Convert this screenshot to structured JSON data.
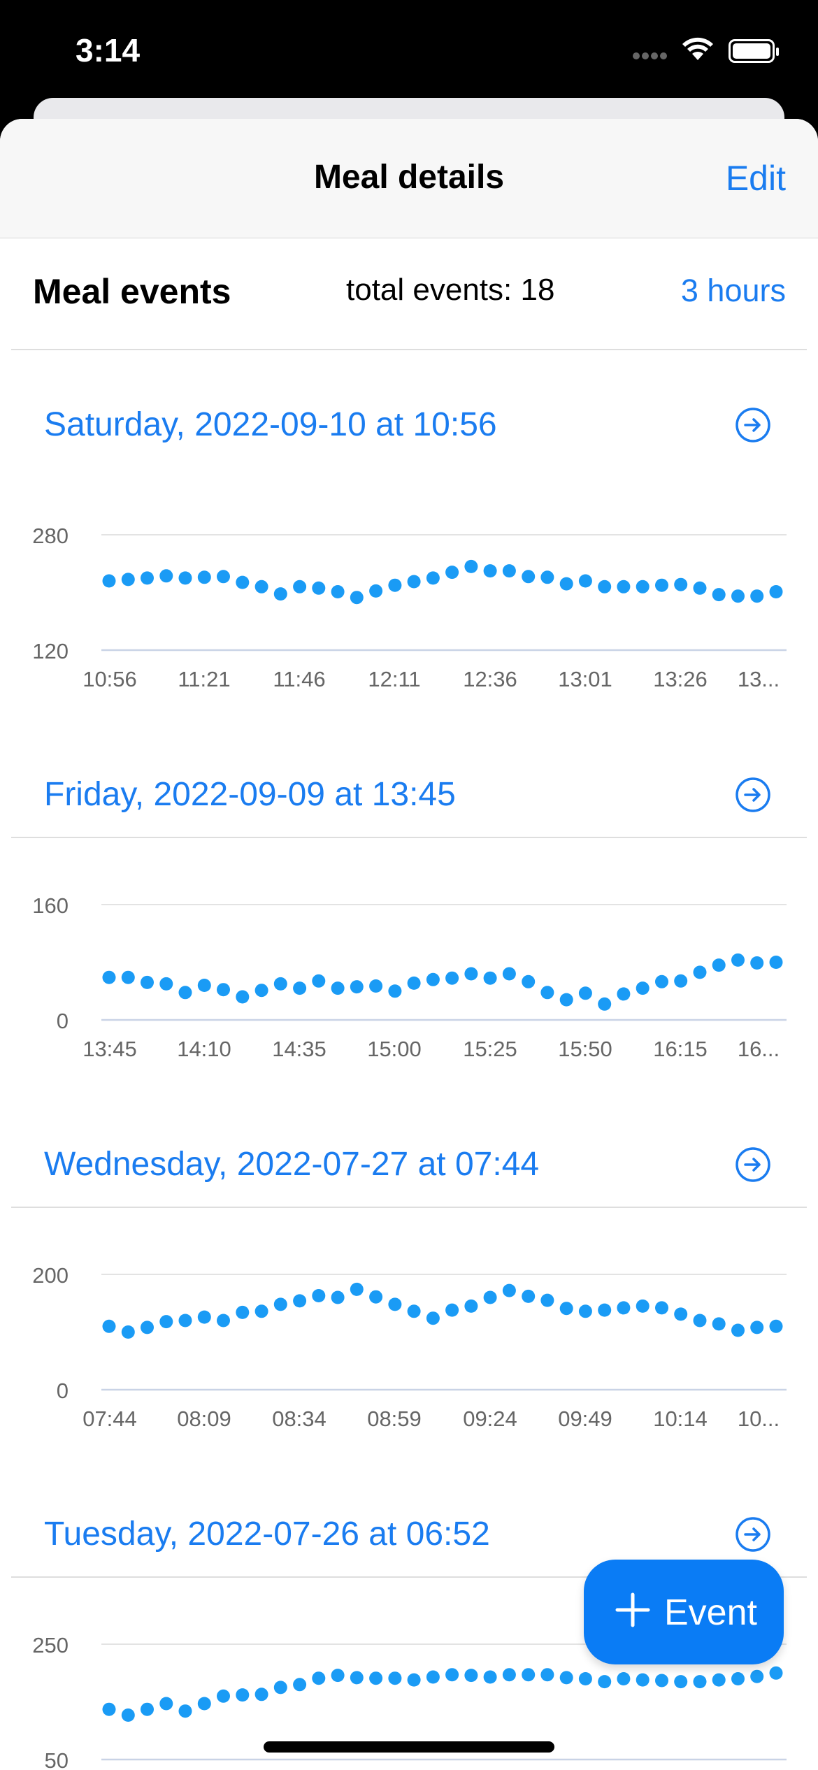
{
  "status_bar": {
    "time": "3:14"
  },
  "nav": {
    "title": "Meal details",
    "edit_label": "Edit"
  },
  "section": {
    "title": "Meal events",
    "total": "total events: 18",
    "range": "3 hours"
  },
  "fab": {
    "label": "Event"
  },
  "colors": {
    "accent": "#1a7cf0",
    "dots": "#1a9bf5",
    "grid": "#e3e3e3",
    "baseline": "#c9d3e6"
  },
  "events": [
    {
      "title": "Saturday, 2022-09-10 at 10:56",
      "chart_data": {
        "type": "scatter",
        "y_ticks": [
          "280",
          "120"
        ],
        "ylim": [
          120,
          280
        ],
        "x_ticks": [
          "10:56",
          "11:21",
          "11:46",
          "12:11",
          "12:36",
          "13:01",
          "13:26",
          "13..."
        ],
        "values": [
          216,
          218,
          220,
          223,
          220,
          221,
          222,
          214,
          208,
          198,
          208,
          206,
          201,
          193,
          202,
          210,
          215,
          220,
          228,
          236,
          230,
          230,
          222,
          221,
          212,
          216,
          208,
          208,
          208,
          210,
          211,
          206,
          197,
          195,
          195,
          201
        ]
      }
    },
    {
      "title": "Friday, 2022-09-09 at 13:45",
      "chart_data": {
        "type": "scatter",
        "y_ticks": [
          "160",
          "0"
        ],
        "ylim": [
          0,
          160
        ],
        "x_ticks": [
          "13:45",
          "14:10",
          "14:35",
          "15:00",
          "15:25",
          "15:50",
          "16:15",
          "16..."
        ],
        "values": [
          59,
          59,
          52,
          50,
          38,
          48,
          42,
          32,
          41,
          50,
          44,
          54,
          44,
          46,
          47,
          40,
          51,
          56,
          58,
          64,
          58,
          64,
          53,
          38,
          28,
          37,
          22,
          36,
          44,
          53,
          54,
          66,
          76,
          83,
          79,
          80
        ]
      }
    },
    {
      "title": "Wednesday, 2022-07-27 at 07:44",
      "chart_data": {
        "type": "scatter",
        "y_ticks": [
          "200",
          "0"
        ],
        "ylim": [
          0,
          200
        ],
        "x_ticks": [
          "07:44",
          "08:09",
          "08:34",
          "08:59",
          "09:24",
          "09:49",
          "10:14",
          "10..."
        ],
        "values": [
          110,
          100,
          108,
          118,
          120,
          126,
          120,
          134,
          136,
          148,
          154,
          163,
          160,
          174,
          161,
          148,
          136,
          124,
          138,
          145,
          160,
          172,
          162,
          155,
          141,
          136,
          138,
          142,
          145,
          142,
          131,
          120,
          114,
          103,
          108,
          110
        ]
      }
    },
    {
      "title": "Tuesday, 2022-07-26 at 06:52",
      "chart_data": {
        "type": "scatter",
        "y_ticks": [
          "250",
          "50"
        ],
        "ylim": [
          50,
          250
        ],
        "x_ticks": [],
        "values": [
          137,
          127,
          137,
          147,
          134,
          147,
          160,
          162,
          163,
          175,
          180,
          191,
          196,
          192,
          191,
          191,
          188,
          193,
          197,
          196,
          193,
          197,
          197,
          197,
          192,
          190,
          185,
          190,
          188,
          187,
          185,
          185,
          188,
          190,
          194,
          200
        ]
      }
    }
  ]
}
